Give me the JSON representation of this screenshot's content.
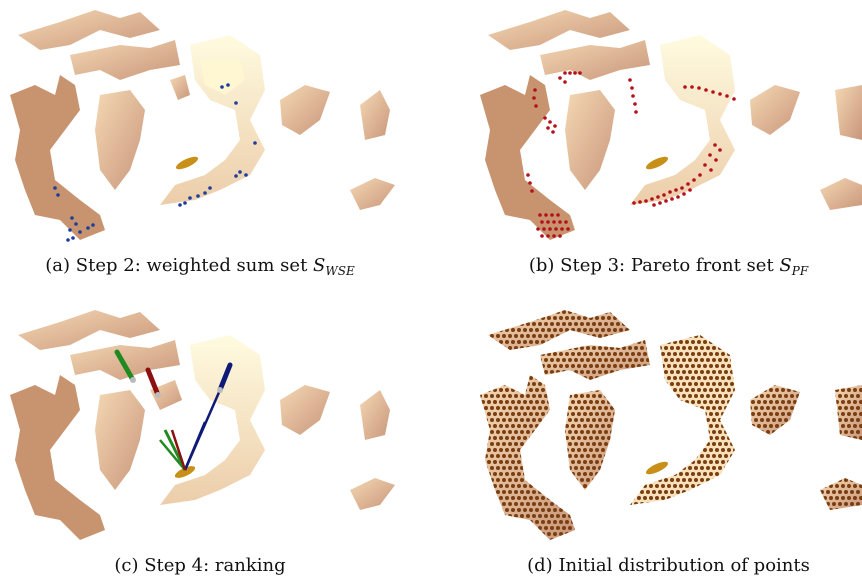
{
  "figure": {
    "captions": [
      {
        "id": "a",
        "prefix": "(a)",
        "text": "Step 2: weighted sum set",
        "math_symbol": "S",
        "math_sub": "WSE"
      },
      {
        "id": "b",
        "prefix": "(b)",
        "text": "Step 3: Pareto front set",
        "math_symbol": "S",
        "math_sub": "PF"
      },
      {
        "id": "c",
        "prefix": "(c)",
        "text": "Step 4: ranking",
        "math_symbol": "",
        "math_sub": ""
      },
      {
        "id": "d",
        "prefix": "(d)",
        "text": "Initial distribution of points",
        "math_symbol": "",
        "math_sub": ""
      }
    ],
    "colors": {
      "surface": "#e6b996",
      "surface_light": "#fbf0c8",
      "surface_dark": "#b9876c",
      "target": "#c89018",
      "wse_points": "#1d3f9a",
      "pf_points": "#b4111a",
      "grid_points": "#7a3e10",
      "ray_green": "#1f8a1f",
      "ray_red": "#8c1010",
      "ray_blue": "#0f1a78"
    }
  }
}
